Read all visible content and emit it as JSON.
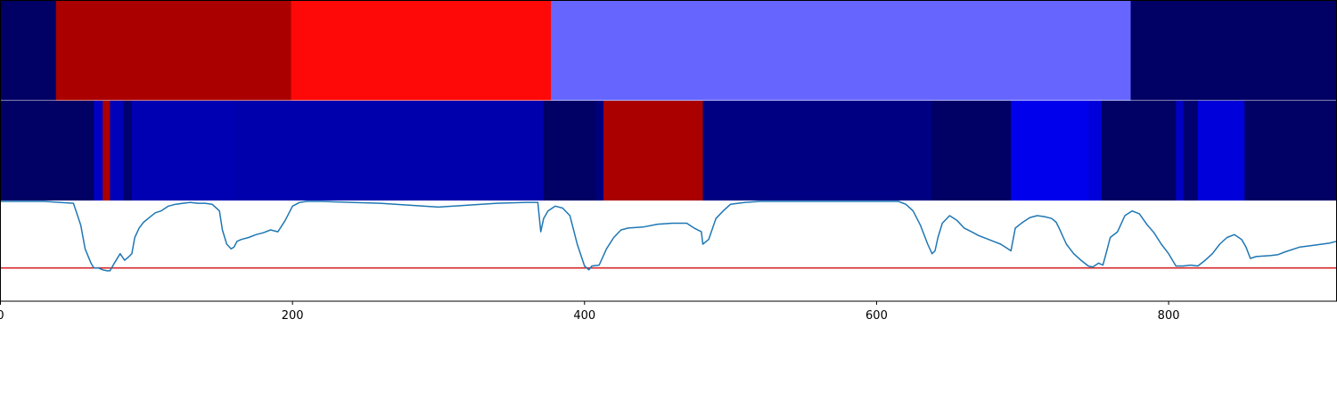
{
  "chart_data": {
    "type": "heatmap",
    "xlim": [
      0,
      915
    ],
    "x_ticks": [
      0,
      200,
      400,
      600,
      800
    ],
    "x_tick_labels": [
      "0",
      "200",
      "400",
      "600",
      "800"
    ],
    "colormap": "seismic",
    "color_range": [
      0,
      6
    ],
    "rows": [
      {
        "segments": [
          {
            "start": 0,
            "end": 38,
            "value": 0.2
          },
          {
            "start": 38,
            "end": 199,
            "value": 5.5
          },
          {
            "start": 199,
            "end": 377,
            "value": 4.45
          },
          {
            "start": 377,
            "end": 774,
            "value": 2.1
          },
          {
            "start": 774,
            "end": 915,
            "value": 0.2
          }
        ]
      },
      {
        "segments": [
          {
            "start": 0,
            "end": 64,
            "value": 0.2
          },
          {
            "start": 64,
            "end": 70,
            "value": 1.0
          },
          {
            "start": 70,
            "end": 75,
            "value": 5.5
          },
          {
            "start": 75,
            "end": 84,
            "value": 0.9
          },
          {
            "start": 84,
            "end": 90,
            "value": 0.3
          },
          {
            "start": 90,
            "end": 160,
            "value": 0.85
          },
          {
            "start": 160,
            "end": 372,
            "value": 0.8
          },
          {
            "start": 372,
            "end": 408,
            "value": 0.2
          },
          {
            "start": 408,
            "end": 413,
            "value": 0.4
          },
          {
            "start": 413,
            "end": 481,
            "value": 5.5
          },
          {
            "start": 481,
            "end": 638,
            "value": 0.45
          },
          {
            "start": 638,
            "end": 692,
            "value": 0.2
          },
          {
            "start": 692,
            "end": 745,
            "value": 1.35
          },
          {
            "start": 745,
            "end": 754,
            "value": 1.2
          },
          {
            "start": 754,
            "end": 805,
            "value": 0.2
          },
          {
            "start": 805,
            "end": 810,
            "value": 1.0
          },
          {
            "start": 810,
            "end": 820,
            "value": 0.3
          },
          {
            "start": 820,
            "end": 852,
            "value": 1.2
          },
          {
            "start": 852,
            "end": 915,
            "value": 0.2
          }
        ]
      }
    ],
    "line": {
      "color": "#1f77b4",
      "ylim": [
        -0.05,
        1.0
      ],
      "x": [
        0,
        30,
        50,
        55,
        58,
        62,
        64,
        67,
        70,
        73,
        75,
        78,
        82,
        85,
        88,
        90,
        92,
        95,
        98,
        102,
        106,
        110,
        115,
        120,
        125,
        130,
        135,
        140,
        145,
        150,
        152,
        155,
        158,
        160,
        162,
        165,
        170,
        175,
        180,
        185,
        190,
        195,
        200,
        205,
        210,
        220,
        240,
        260,
        280,
        300,
        320,
        340,
        360,
        368,
        370,
        372,
        375,
        380,
        385,
        390,
        395,
        400,
        403,
        405,
        410,
        415,
        420,
        425,
        430,
        440,
        450,
        460,
        470,
        475,
        480,
        481,
        485,
        490,
        495,
        500,
        510,
        520,
        540,
        560,
        580,
        600,
        615,
        620,
        625,
        630,
        635,
        638,
        640,
        642,
        645,
        650,
        655,
        660,
        665,
        670,
        675,
        680,
        685,
        690,
        692,
        695,
        700,
        705,
        710,
        715,
        720,
        723,
        725,
        730,
        735,
        740,
        745,
        748,
        750,
        752,
        755,
        758,
        760,
        765,
        770,
        775,
        780,
        785,
        790,
        795,
        800,
        805,
        810,
        815,
        820,
        825,
        830,
        835,
        840,
        845,
        850,
        853,
        856,
        860,
        870,
        875,
        880,
        890,
        900,
        910,
        915
      ],
      "y": [
        1.0,
        1.0,
        0.98,
        0.75,
        0.5,
        0.35,
        0.3,
        0.3,
        0.28,
        0.27,
        0.27,
        0.35,
        0.45,
        0.38,
        0.42,
        0.45,
        0.62,
        0.72,
        0.78,
        0.83,
        0.88,
        0.9,
        0.95,
        0.97,
        0.98,
        0.99,
        0.98,
        0.98,
        0.97,
        0.9,
        0.7,
        0.55,
        0.5,
        0.52,
        0.58,
        0.6,
        0.62,
        0.65,
        0.67,
        0.7,
        0.68,
        0.8,
        0.95,
        0.99,
        1.0,
        1.0,
        0.99,
        0.98,
        0.96,
        0.94,
        0.96,
        0.98,
        0.99,
        0.99,
        0.68,
        0.82,
        0.9,
        0.95,
        0.93,
        0.85,
        0.55,
        0.32,
        0.28,
        0.32,
        0.33,
        0.5,
        0.62,
        0.7,
        0.72,
        0.73,
        0.76,
        0.77,
        0.77,
        0.72,
        0.68,
        0.55,
        0.6,
        0.82,
        0.9,
        0.97,
        0.99,
        1.0,
        1.0,
        1.0,
        1.0,
        1.0,
        1.0,
        0.97,
        0.9,
        0.75,
        0.55,
        0.45,
        0.48,
        0.62,
        0.77,
        0.85,
        0.8,
        0.72,
        0.68,
        0.64,
        0.61,
        0.58,
        0.55,
        0.5,
        0.48,
        0.72,
        0.78,
        0.83,
        0.85,
        0.84,
        0.82,
        0.78,
        0.72,
        0.55,
        0.45,
        0.38,
        0.32,
        0.31,
        0.33,
        0.35,
        0.33,
        0.5,
        0.62,
        0.68,
        0.85,
        0.9,
        0.87,
        0.76,
        0.67,
        0.55,
        0.45,
        0.32,
        0.32,
        0.33,
        0.32,
        0.38,
        0.45,
        0.55,
        0.62,
        0.65,
        0.6,
        0.52,
        0.4,
        0.42,
        0.43,
        0.44,
        0.47,
        0.52,
        0.54,
        0.56,
        0.58
      ],
      "threshold": 0.3,
      "threshold_color": "#d62728"
    }
  }
}
